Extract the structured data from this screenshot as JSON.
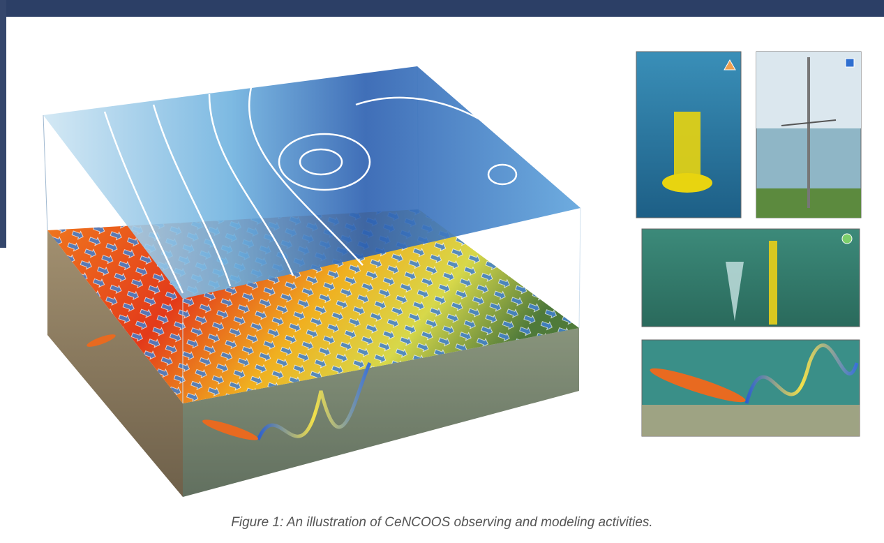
{
  "figure": {
    "caption": "Figure 1: An illustration of CeNCOOS observing and modeling activities."
  }
}
